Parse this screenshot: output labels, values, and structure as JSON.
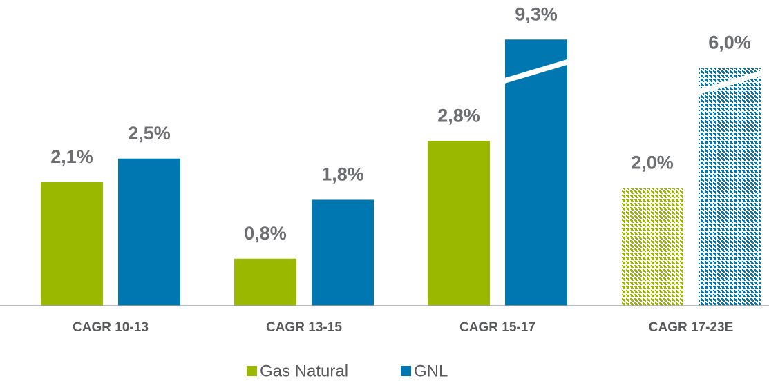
{
  "chart_data": {
    "type": "bar",
    "categories": [
      "CAGR 10-13",
      "CAGR 13-15",
      "CAGR 15-17",
      "CAGR 17-23E"
    ],
    "series": [
      {
        "name": "Gas Natural",
        "color": "#9bb800",
        "values": [
          2.1,
          0.8,
          2.8,
          2.0
        ],
        "value_labels": [
          "2,1%",
          "0,8%",
          "2,8%",
          "2,0%"
        ],
        "pattern": [
          false,
          false,
          false,
          true
        ]
      },
      {
        "name": "GNL",
        "color": "#0077b0",
        "values": [
          2.5,
          1.8,
          9.3,
          6.0
        ],
        "value_labels": [
          "2,5%",
          "1,8%",
          "9,3%",
          "6,0%"
        ],
        "pattern": [
          false,
          false,
          false,
          true
        ]
      }
    ],
    "ylim": [
      0,
      10
    ],
    "ybreak": 3.7
  }
}
